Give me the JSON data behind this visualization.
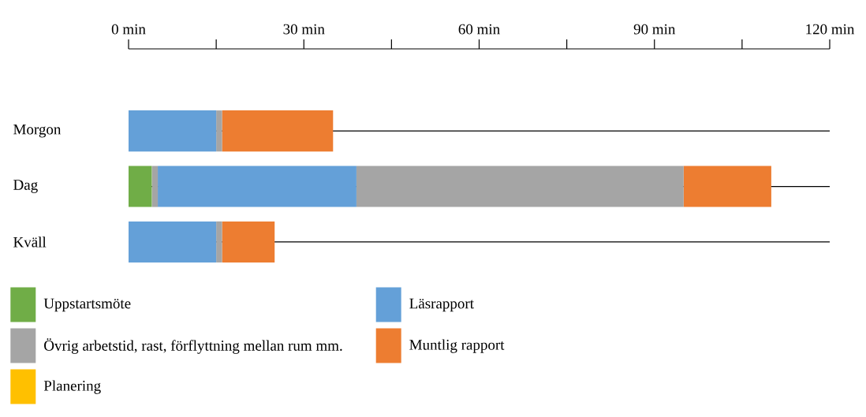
{
  "chart_data": {
    "type": "bar",
    "orientation": "horizontal",
    "stacked": true,
    "categories": [
      "Morgon",
      "Dag",
      "Kväll"
    ],
    "series": [
      {
        "name": "Uppstartsmöte",
        "color": "#70ad47",
        "values": [
          0,
          4,
          0
        ]
      },
      {
        "color": "#a5a5a5",
        "values": [
          0,
          1,
          0
        ]
      },
      {
        "name": "Läsrapport",
        "color": "#64a0d8",
        "values": [
          15,
          34,
          15
        ]
      },
      {
        "name": "Övrig arbetstid, rast, förflyttning mellan rum mm.",
        "color": "#a5a5a5",
        "values": [
          1,
          56,
          1
        ]
      },
      {
        "name": "Muntlig rapport",
        "color": "#ed7d31",
        "values": [
          19,
          15,
          9
        ]
      },
      {
        "name": "Planering",
        "color": "#ffc000",
        "values": [
          0,
          0,
          0
        ]
      }
    ],
    "xlim": [
      0,
      120
    ],
    "xticks": [
      {
        "value": 0,
        "label": "0 min"
      },
      {
        "value": 30,
        "label": "30 min"
      },
      {
        "value": 60,
        "label": "60 min"
      },
      {
        "value": 90,
        "label": "90 min"
      },
      {
        "value": 120,
        "label": "120 min"
      }
    ],
    "grid": "y",
    "legend": "bottom"
  }
}
